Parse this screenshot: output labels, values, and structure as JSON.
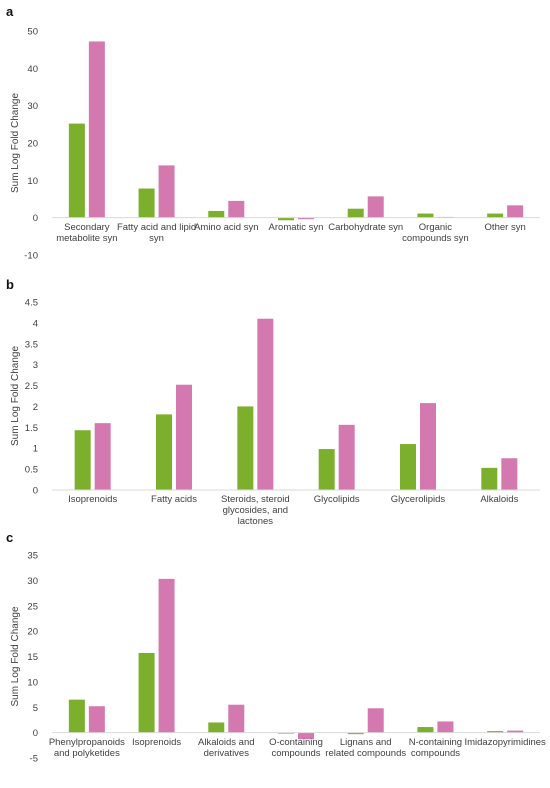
{
  "colors": {
    "series1": "#7cb02c",
    "series2": "#d478b0"
  },
  "chart_data": [
    {
      "panel": "a",
      "type": "bar",
      "ylabel": "Sum Log Fold Change",
      "ylim": [
        -10,
        50
      ],
      "yticks": [
        -10,
        0,
        10,
        20,
        30,
        40,
        50
      ],
      "grid": false,
      "categories": [
        [
          "Secondary",
          "metabolite syn"
        ],
        [
          "Fatty acid and lipid",
          "syn"
        ],
        [
          "Amino acid syn"
        ],
        [
          "Aromatic syn"
        ],
        [
          "Carbohydrate syn"
        ],
        [
          "Organic",
          "compounds syn"
        ],
        [
          "Other syn"
        ]
      ],
      "series": [
        {
          "values": [
            25.2,
            7.8,
            1.8,
            -0.7,
            2.4,
            1.1,
            1.1
          ]
        },
        {
          "values": [
            47.2,
            14.0,
            4.5,
            -0.4,
            5.7,
            0.2,
            3.3
          ]
        }
      ]
    },
    {
      "panel": "b",
      "type": "bar",
      "ylabel": "Sum Log Fold Change",
      "ylim": [
        0,
        4.5
      ],
      "yticks": [
        0,
        0.5,
        1,
        1.5,
        2,
        2.5,
        3,
        3.5,
        4,
        4.5
      ],
      "grid": false,
      "categories": [
        [
          "Isoprenoids"
        ],
        [
          "Fatty acids"
        ],
        [
          "Steroids, steroid",
          "glycosides, and",
          "lactones"
        ],
        [
          "Glycolipids"
        ],
        [
          "Glycerolipids"
        ],
        [
          "Alkaloids"
        ]
      ],
      "series": [
        {
          "values": [
            1.43,
            1.81,
            2.0,
            0.98,
            1.1,
            0.53
          ]
        },
        {
          "values": [
            1.6,
            2.52,
            4.1,
            1.56,
            2.08,
            0.76
          ]
        }
      ]
    },
    {
      "panel": "c",
      "type": "bar",
      "ylabel": "Sum Log Fold Change",
      "ylim": [
        -5,
        35
      ],
      "yticks": [
        -5,
        0,
        5,
        10,
        15,
        20,
        25,
        30,
        35
      ],
      "grid": false,
      "categories": [
        [
          "Phenylpropanoids",
          "and polyketides"
        ],
        [
          "Isoprenoids"
        ],
        [
          "Alkaloids and",
          "derivatives"
        ],
        [
          "O-containing",
          "compounds"
        ],
        [
          "Lignans and",
          "related compounds"
        ],
        [
          "N-containing",
          "compounds"
        ],
        [
          "Imidazopyrimidines"
        ]
      ],
      "series": [
        {
          "values": [
            6.5,
            15.7,
            2.0,
            -0.2,
            -0.3,
            1.1,
            0.3
          ]
        },
        {
          "values": [
            5.2,
            30.3,
            5.5,
            -1.3,
            4.8,
            2.2,
            0.4
          ]
        }
      ]
    }
  ]
}
